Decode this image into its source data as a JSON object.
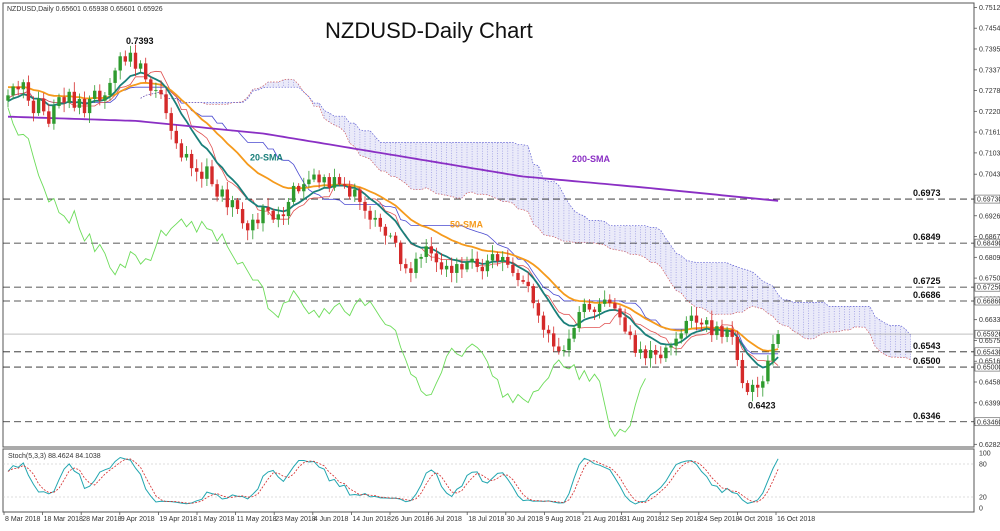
{
  "header": {
    "symbol_info": "NZDUSD,Daily  0.65601 0.65938 0.65601 0.65926",
    "title": "NZDUSD-Daily Chart"
  },
  "chart_data": {
    "type": "candlestick",
    "title": "NZDUSD-Daily Chart",
    "ylim": [
      0.6275,
      0.7525
    ],
    "y_ticks": [
      "0.75125",
      "0.74540",
      "0.73955",
      "0.73370",
      "0.72785",
      "0.72200",
      "0.71615",
      "0.71030",
      "0.70430",
      "0.69260",
      "0.68675",
      "0.68090",
      "0.67505",
      "0.66920",
      "0.66335",
      "0.65750",
      "0.65165",
      "0.64580",
      "0.63995",
      "0.63410",
      "0.62825"
    ],
    "price_tags": [
      {
        "label": "0.69730",
        "value": 0.6973,
        "bg": "#ffffff"
      },
      {
        "label": "0.68490",
        "value": 0.6849,
        "bg": "#ffffff"
      },
      {
        "label": "0.67250",
        "value": 0.6725,
        "bg": "#ffffff"
      },
      {
        "label": "0.66860",
        "value": 0.6686,
        "bg": "#ffffff"
      },
      {
        "label": "0.65926",
        "value": 0.65926,
        "bg": "#ffffff"
      },
      {
        "label": "0.65430",
        "value": 0.6543,
        "bg": "#ffffff"
      },
      {
        "label": "0.65000",
        "value": 0.65,
        "bg": "#ffffff"
      },
      {
        "label": "0.63460",
        "value": 0.6346,
        "bg": "#ffffff"
      }
    ],
    "x_labels": [
      "8 Mar 2018",
      "18 Mar 2018",
      "28 Mar 2018",
      "9 Apr 2018",
      "19 Apr 2018",
      "1 May 2018",
      "11 May 2018",
      "23 May 2018",
      "4 Jun 2018",
      "14 Jun 2018",
      "26 Jun 2018",
      "6 Jul 2018",
      "18 Jul 2018",
      "30 Jul 2018",
      "9 Aug 2018",
      "21 Aug 2018",
      "31 Aug 2018",
      "12 Sep 2018",
      "24 Sep 2018",
      "4 Oct 2018",
      "16 Oct 2018"
    ],
    "levels": [
      {
        "label": "0.6973",
        "value": 0.6973
      },
      {
        "label": "0.6849",
        "value": 0.6849
      },
      {
        "label": "0.6725",
        "value": 0.6725
      },
      {
        "label": "0.6686",
        "value": 0.6686
      },
      {
        "label": "0.6543",
        "value": 0.6543
      },
      {
        "label": "0.6500",
        "value": 0.65
      },
      {
        "label": "0.6346",
        "value": 0.6346
      }
    ],
    "annotations": [
      {
        "text": "0.7393",
        "value": 0.7393
      },
      {
        "text": "0.6423",
        "value": 0.6423
      }
    ],
    "sma_labels": [
      {
        "name": "20-SMA",
        "color": "#1a7f7a"
      },
      {
        "name": "50-SMA",
        "color": "#f59a1c"
      },
      {
        "name": "200-SMA",
        "color": "#8a2fc4"
      }
    ],
    "colors": {
      "up": "#2e9b2e",
      "down": "#d42a2a",
      "chikou": "#6ddc5a",
      "ichimoku_cloud": "#8888dd",
      "tenkan": "#e05050",
      "kijun": "#4a4ad0"
    },
    "closes": [
      0.7265,
      0.729,
      0.7282,
      0.7302,
      0.725,
      0.7215,
      0.7255,
      0.722,
      0.7185,
      0.7235,
      0.726,
      0.7245,
      0.7275,
      0.723,
      0.7255,
      0.7215,
      0.7255,
      0.7278,
      0.725,
      0.7265,
      0.73,
      0.7335,
      0.7375,
      0.736,
      0.7385,
      0.734,
      0.7355,
      0.731,
      0.7278,
      0.728,
      0.7268,
      0.7215,
      0.7165,
      0.713,
      0.709,
      0.71,
      0.706,
      0.705,
      0.703,
      0.7065,
      0.7015,
      0.698,
      0.7,
      0.695,
      0.697,
      0.6945,
      0.6905,
      0.6885,
      0.6915,
      0.6905,
      0.695,
      0.694,
      0.6915,
      0.693,
      0.6925,
      0.6965,
      0.701,
      0.6995,
      0.7015,
      0.7028,
      0.7042,
      0.702,
      0.7035,
      0.7005,
      0.7035,
      0.7015,
      0.701,
      0.698,
      0.7,
      0.6965,
      0.694,
      0.6915,
      0.692,
      0.6895,
      0.687,
      0.687,
      0.685,
      0.679,
      0.6778,
      0.6765,
      0.6805,
      0.681,
      0.684,
      0.682,
      0.6795,
      0.6775,
      0.6785,
      0.6765,
      0.679,
      0.6775,
      0.6795,
      0.6805,
      0.6782,
      0.677,
      0.68,
      0.6818,
      0.6798,
      0.681,
      0.6788,
      0.6765,
      0.6745,
      0.674,
      0.6728,
      0.668,
      0.6645,
      0.6605,
      0.6595,
      0.6558,
      0.6545,
      0.6548,
      0.658,
      0.661,
      0.6655,
      0.6678,
      0.6662,
      0.6655,
      0.6678,
      0.669,
      0.668,
      0.6665,
      0.664,
      0.66,
      0.659,
      0.654,
      0.655,
      0.6525,
      0.6548,
      0.6535,
      0.6525,
      0.6555,
      0.656,
      0.658,
      0.6595,
      0.663,
      0.6645,
      0.6625,
      0.662,
      0.6632,
      0.659,
      0.6615,
      0.6585,
      0.6605,
      0.6585,
      0.652,
      0.6455,
      0.643,
      0.645,
      0.6442,
      0.646,
      0.6518,
      0.6565,
      0.6593
    ],
    "sma20_start": 0.7245,
    "sma50_start": 0.729,
    "sma200": [
      0.7205,
      0.7193,
      0.7157,
      0.7097,
      0.7037,
      0.7004,
      0.6968
    ],
    "stochastic": {
      "label": "Stoch(5,3,3) 88.4624 84.1038",
      "ylim": [
        0,
        100
      ],
      "ticks": [
        100,
        80,
        20,
        0
      ]
    }
  }
}
